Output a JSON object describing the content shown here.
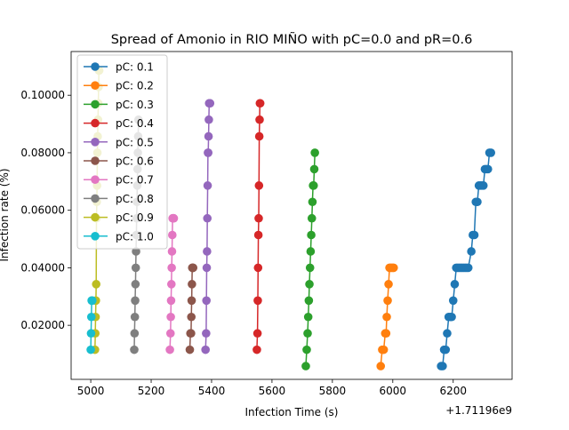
{
  "chart_data": {
    "type": "line",
    "title": "Spread of Amonio in RIO MIÑO with pC=0.0 and pR=0.6",
    "xlabel": "Infection Time (s)",
    "ylabel": "Infection rate (%)",
    "x_offset_label": "+1.71196e9",
    "xlim": [
      4935,
      6395
    ],
    "ylim": [
      0.0012,
      0.1152
    ],
    "xticks": [
      5000,
      5200,
      5400,
      5600,
      5800,
      6000,
      6200
    ],
    "xtick_labels": [
      "5000",
      "5200",
      "5400",
      "5600",
      "5800",
      "6000",
      "6200"
    ],
    "yticks": [
      0.02,
      0.04,
      0.06,
      0.08,
      0.1
    ],
    "ytick_labels": [
      "0.02000",
      "0.04000",
      "0.06000",
      "0.08000",
      "0.10000"
    ],
    "legend_position": "upper-left",
    "grid": false,
    "series": [
      {
        "name": "pC: 0.1",
        "color": "#1f77b4",
        "x": [
          6160,
          6165,
          6170,
          6175,
          6180,
          6185,
          6190,
          6195,
          6200,
          6205,
          6210,
          6215,
          6220,
          6225,
          6230,
          6235,
          6240,
          6245,
          6250,
          6260,
          6265,
          6270,
          6275,
          6280,
          6285,
          6290,
          6295,
          6300,
          6305,
          6310,
          6315,
          6320,
          6325
        ],
        "y": [
          0.0058,
          0.0058,
          0.0115,
          0.0115,
          0.0172,
          0.0229,
          0.0229,
          0.0229,
          0.0286,
          0.0343,
          0.04,
          0.04,
          0.04,
          0.04,
          0.04,
          0.04,
          0.04,
          0.04,
          0.04,
          0.0457,
          0.0514,
          0.0514,
          0.0629,
          0.0629,
          0.0686,
          0.0686,
          0.0686,
          0.0686,
          0.0743,
          0.0743,
          0.0743,
          0.08,
          0.08
        ]
      },
      {
        "name": "pC: 0.2",
        "color": "#ff7f0e",
        "x": [
          5960,
          5965,
          5970,
          5975,
          5978,
          5980,
          5983,
          5986,
          5989,
          5992,
          5996,
          6000,
          6003
        ],
        "y": [
          0.0058,
          0.0115,
          0.0115,
          0.0172,
          0.0172,
          0.0229,
          0.0286,
          0.0343,
          0.04,
          0.04,
          0.04,
          0.04,
          0.04
        ]
      },
      {
        "name": "pC: 0.3",
        "color": "#2ca02c",
        "x": [
          5712,
          5715,
          5718,
          5720,
          5722,
          5724,
          5726,
          5728,
          5730,
          5732,
          5734,
          5736,
          5738,
          5740,
          5742
        ],
        "y": [
          0.0058,
          0.0115,
          0.0172,
          0.0229,
          0.0286,
          0.0343,
          0.04,
          0.0457,
          0.0514,
          0.0572,
          0.0629,
          0.0686,
          0.0686,
          0.0743,
          0.08
        ]
      },
      {
        "name": "pC: 0.4",
        "color": "#d62728",
        "x": [
          5550,
          5552,
          5553,
          5554,
          5555,
          5556,
          5557,
          5558,
          5559,
          5560,
          5561
        ],
        "y": [
          0.0115,
          0.0172,
          0.0286,
          0.04,
          0.0514,
          0.0572,
          0.0686,
          0.0857,
          0.0915,
          0.0972,
          0.0972
        ]
      },
      {
        "name": "pC: 0.5",
        "color": "#9467bd",
        "x": [
          5380,
          5382,
          5383,
          5384,
          5385,
          5386,
          5387,
          5388,
          5389,
          5390,
          5391,
          5392,
          5393,
          5394,
          5395
        ],
        "y": [
          0.0115,
          0.0172,
          0.0286,
          0.04,
          0.0457,
          0.0572,
          0.0686,
          0.08,
          0.08,
          0.0857,
          0.0915,
          0.0972,
          0.0972,
          0.0972,
          0.0972
        ]
      },
      {
        "name": "pC: 0.6",
        "color": "#8c564b",
        "x": [
          5328,
          5330,
          5332,
          5333,
          5334,
          5335,
          5336,
          5337,
          5338,
          5339
        ],
        "y": [
          0.0115,
          0.0172,
          0.0172,
          0.0229,
          0.0286,
          0.0343,
          0.04,
          0.04,
          0.04,
          0.04
        ]
      },
      {
        "name": "pC: 0.7",
        "color": "#e377c2",
        "x": [
          5262,
          5264,
          5265,
          5266,
          5267,
          5268,
          5269,
          5270,
          5271,
          5272,
          5273,
          5274,
          5275
        ],
        "y": [
          0.0115,
          0.0172,
          0.0229,
          0.0286,
          0.0343,
          0.04,
          0.0457,
          0.0514,
          0.0572,
          0.0572,
          0.0572,
          0.0572,
          0.0572
        ]
      },
      {
        "name": "pC: 0.8",
        "color": "#7f7f7f",
        "x": [
          5144,
          5145,
          5146,
          5147,
          5148,
          5149,
          5150,
          5151,
          5152,
          5153,
          5154,
          5155,
          5156,
          5157,
          5158
        ],
        "y": [
          0.0115,
          0.0172,
          0.0229,
          0.0286,
          0.0343,
          0.04,
          0.0457,
          0.0514,
          0.0572,
          0.0629,
          0.0686,
          0.0743,
          0.08,
          0.0857,
          0.0915
        ]
      },
      {
        "name": "pC: 0.9",
        "color": "#bcbd22",
        "x": [
          5014,
          5015,
          5016,
          5017,
          5018,
          5019,
          5020,
          5021,
          5022,
          5023,
          5024,
          5025,
          5026,
          5027,
          5028
        ],
        "y": [
          0.0115,
          0.0172,
          0.0229,
          0.0286,
          0.0343,
          0.0572,
          0.0629,
          0.0686,
          0.08,
          0.0857,
          0.0915,
          0.0972,
          0.1029,
          0.1086,
          0.1086
        ]
      },
      {
        "name": "pC: 1.0",
        "color": "#17becf",
        "x": [
          5000,
          5001,
          5002,
          5003,
          5004,
          5005
        ],
        "y": [
          0.0115,
          0.0172,
          0.0229,
          0.0286,
          0.0286,
          0.0286
        ]
      }
    ]
  }
}
